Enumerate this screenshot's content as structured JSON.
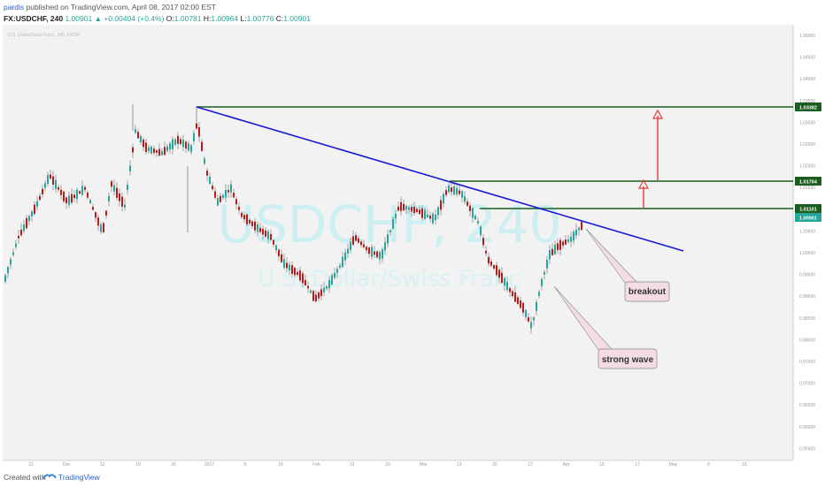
{
  "header": {
    "author": "pardis",
    "published_text": " published on TradingView.com, April 08, 2017 02:00 EST",
    "symbol": "FX:USDCHF, 240",
    "last": "1.00901",
    "change": "+0.00404 (+0.4%)",
    "open_label": "O:",
    "open": "1.00781",
    "high_label": "H:",
    "high": "1.00964",
    "low_label": "L:",
    "low": "1.00776",
    "close_label": "C:",
    "close": "1.00901"
  },
  "watermark": {
    "symbol": "USDCHF, 240",
    "description": "U.S. Dollar/Swiss Franc",
    "legend": "U.S. Dollar/Swiss Franc, 240, FXCM"
  },
  "footer": {
    "created_with": "Created with",
    "brand": "TradingView"
  },
  "colors": {
    "resistance_line": "#1b5e20",
    "trend_line": "#1a1ad6",
    "arrow": "#e53935",
    "candle_up": "#26a69a",
    "candle_down": "#b71c1c",
    "callout_fill": "#f3dde2"
  },
  "chart_data": {
    "type": "candlestick",
    "price_scale": {
      "ticks": [
        "1.05000",
        "1.04500",
        "1.04000",
        "1.03500",
        "1.03000",
        "1.02500",
        "1.02000",
        "1.01500",
        "1.01000",
        "1.00500",
        "1.00000",
        "0.99500",
        "0.99000",
        "0.98500",
        "0.98000",
        "0.97500",
        "0.97000",
        "0.96500",
        "0.96000",
        "0.95500"
      ]
    },
    "time_scale": {
      "ticks": [
        "21",
        "Dec",
        "12",
        "19",
        "26",
        "2017",
        "9",
        "16",
        "Feb",
        "13",
        "20",
        "Mar",
        "13",
        "20",
        "27",
        "Apr",
        "10",
        "17",
        "May",
        "8",
        "15"
      ]
    },
    "price_labels": [
      {
        "value": "1.03382",
        "price": 1.03382,
        "color": "#1b5e20"
      },
      {
        "value": "1.01704",
        "price": 1.01704,
        "color": "#1b5e20"
      },
      {
        "value": "1.01101",
        "price": 1.01101,
        "color": "#1b5e20"
      },
      {
        "value": "1.00901",
        "price": 1.00901,
        "color": "#26a69a"
      }
    ],
    "resistance_levels": [
      1.03382,
      1.01704,
      1.01101
    ],
    "annotations": [
      {
        "text": "breakout"
      },
      {
        "text": "strong wave"
      }
    ]
  }
}
